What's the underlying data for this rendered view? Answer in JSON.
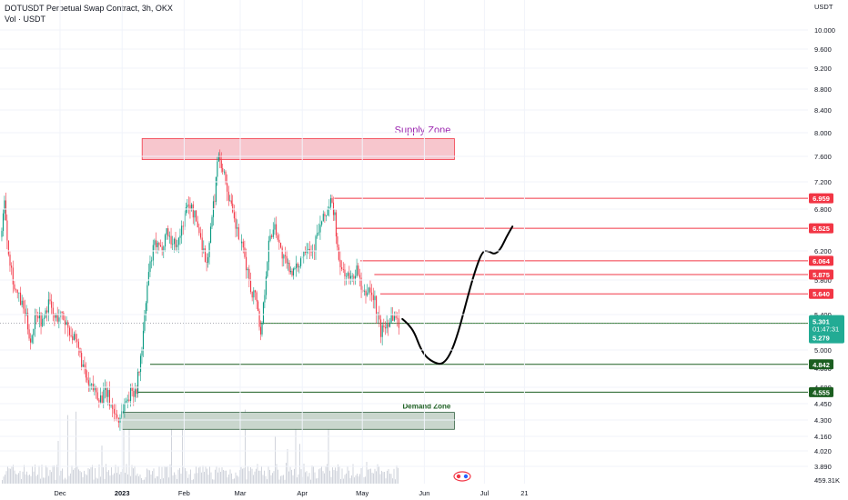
{
  "header": {
    "title": "DOTUSDT Perpetual Swap Contract, 3h, OKX",
    "volume_label": "Vol · USDT"
  },
  "chart_data": {
    "type": "candlestick",
    "currency": "USDT",
    "y_ticks": [
      "10.000",
      "9.600",
      "9.200",
      "8.800",
      "8.400",
      "8.000",
      "7.600",
      "7.200",
      "6.800",
      "6.200",
      "5.800",
      "5.400",
      "5.000",
      "4.800",
      "4.600",
      "4.450",
      "4.300",
      "4.160",
      "4.020",
      "3.890"
    ],
    "x_ticks": [
      "Dec",
      "2023",
      "Feb",
      "Mar",
      "Apr",
      "May",
      "Jun",
      "Jul",
      "21"
    ],
    "price_path": [
      [
        "2022-11-01",
        6.4
      ],
      [
        "2022-11-03",
        6.9
      ],
      [
        "2022-11-05",
        6.2
      ],
      [
        "2022-11-08",
        5.7
      ],
      [
        "2022-11-11",
        5.55
      ],
      [
        "2022-11-14",
        5.35
      ],
      [
        "2022-11-16",
        5.1
      ],
      [
        "2022-11-19",
        5.45
      ],
      [
        "2022-11-22",
        5.3
      ],
      [
        "2022-11-25",
        5.55
      ],
      [
        "2022-11-28",
        5.35
      ],
      [
        "2022-12-01",
        5.4
      ],
      [
        "2022-12-04",
        5.3
      ],
      [
        "2022-12-07",
        5.15
      ],
      [
        "2022-12-10",
        5.0
      ],
      [
        "2022-12-13",
        4.75
      ],
      [
        "2022-12-15",
        4.6
      ],
      [
        "2022-12-18",
        4.58
      ],
      [
        "2022-12-21",
        4.5
      ],
      [
        "2022-12-24",
        4.55
      ],
      [
        "2022-12-27",
        4.4
      ],
      [
        "2022-12-30",
        4.3
      ],
      [
        "2023-01-02",
        4.45
      ],
      [
        "2023-01-05",
        4.55
      ],
      [
        "2023-01-08",
        4.6
      ],
      [
        "2023-01-10",
        4.9
      ],
      [
        "2023-01-12",
        5.35
      ],
      [
        "2023-01-14",
        5.9
      ],
      [
        "2023-01-17",
        6.3
      ],
      [
        "2023-01-20",
        6.2
      ],
      [
        "2023-01-23",
        6.5
      ],
      [
        "2023-01-26",
        6.3
      ],
      [
        "2023-01-29",
        6.35
      ],
      [
        "2023-02-01",
        6.7
      ],
      [
        "2023-02-03",
        6.9
      ],
      [
        "2023-02-06",
        6.7
      ],
      [
        "2023-02-09",
        6.4
      ],
      [
        "2023-02-12",
        6.0
      ],
      [
        "2023-02-14",
        6.5
      ],
      [
        "2023-02-16",
        7.0
      ],
      [
        "2023-02-18",
        7.7
      ],
      [
        "2023-02-20",
        7.4
      ],
      [
        "2023-02-23",
        7.0
      ],
      [
        "2023-02-25",
        6.7
      ],
      [
        "2023-02-28",
        6.4
      ],
      [
        "2023-03-03",
        6.1
      ],
      [
        "2023-03-06",
        5.7
      ],
      [
        "2023-03-09",
        5.6
      ],
      [
        "2023-03-11",
        5.15
      ],
      [
        "2023-03-13",
        5.7
      ],
      [
        "2023-03-15",
        6.3
      ],
      [
        "2023-03-18",
        6.6
      ],
      [
        "2023-03-21",
        6.2
      ],
      [
        "2023-03-24",
        6.0
      ],
      [
        "2023-03-28",
        5.9
      ],
      [
        "2023-03-31",
        6.1
      ],
      [
        "2023-04-03",
        6.3
      ],
      [
        "2023-04-06",
        6.2
      ],
      [
        "2023-04-09",
        6.5
      ],
      [
        "2023-04-12",
        6.7
      ],
      [
        "2023-04-15",
        6.9
      ],
      [
        "2023-04-17",
        6.7
      ],
      [
        "2023-04-19",
        6.0
      ],
      [
        "2023-04-22",
        5.9
      ],
      [
        "2023-04-25",
        5.8
      ],
      [
        "2023-04-28",
        5.95
      ],
      [
        "2023-05-01",
        5.6
      ],
      [
        "2023-05-04",
        5.7
      ],
      [
        "2023-05-07",
        5.55
      ],
      [
        "2023-05-10",
        5.2
      ],
      [
        "2023-05-13",
        5.3
      ],
      [
        "2023-05-16",
        5.4
      ],
      [
        "2023-05-19",
        5.301
      ]
    ],
    "current_price": "5.301",
    "countdown": "01:47:31",
    "other_tag": "5.279",
    "volume_tag": "459.31K",
    "price_lines": [
      {
        "price": 6.959,
        "label": "6.959",
        "color": "#f23645",
        "kind": "resistance"
      },
      {
        "price": 6.525,
        "label": "6.525",
        "color": "#f23645",
        "kind": "resistance"
      },
      {
        "price": 6.064,
        "label": "6.064",
        "color": "#f23645",
        "kind": "resistance"
      },
      {
        "price": 5.875,
        "label": "5.875",
        "color": "#f23645",
        "kind": "resistance"
      },
      {
        "price": 5.64,
        "label": "5.640",
        "color": "#f23645",
        "kind": "resistance"
      },
      {
        "price": 5.301,
        "label": "",
        "color": "#2e7d32",
        "kind": "support"
      },
      {
        "price": 4.842,
        "label": "4.842",
        "color": "#1b5e20",
        "kind": "support"
      },
      {
        "price": 4.555,
        "label": "4.555",
        "color": "#1b5e20",
        "kind": "support"
      }
    ],
    "zones": [
      {
        "name": "Supply Zone",
        "top": 7.9,
        "bottom": 7.55,
        "fill": "#f7c6cd",
        "stroke": "#f23645",
        "text_color": "#9c27b0"
      },
      {
        "name": "Demand Zone",
        "top": 4.37,
        "bottom": 4.22,
        "fill": "#c9d6cd",
        "stroke": "#2e5e3e",
        "text_color": "#1b5e20"
      }
    ],
    "projection_path": [
      [
        "2023-05-21",
        5.35
      ],
      [
        "2023-05-24",
        5.29
      ],
      [
        "2023-05-27",
        5.2
      ],
      [
        "2023-05-30",
        5.02
      ],
      [
        "2023-06-02",
        4.92
      ],
      [
        "2023-06-06",
        4.86
      ],
      [
        "2023-06-10",
        4.84
      ],
      [
        "2023-06-14",
        4.95
      ],
      [
        "2023-06-18",
        5.2
      ],
      [
        "2023-06-22",
        5.55
      ],
      [
        "2023-06-26",
        5.9
      ],
      [
        "2023-06-30",
        6.2
      ],
      [
        "2023-07-03",
        6.2
      ],
      [
        "2023-07-06",
        6.15
      ],
      [
        "2023-07-09",
        6.22
      ],
      [
        "2023-07-12",
        6.4
      ],
      [
        "2023-07-15",
        6.55
      ]
    ],
    "colors": {
      "up": "#089981",
      "down": "#f23645",
      "price_tag": "#22ab94",
      "volume": "#d1d4dc",
      "projection": "#000000",
      "grid": "#f0f3fa"
    }
  }
}
